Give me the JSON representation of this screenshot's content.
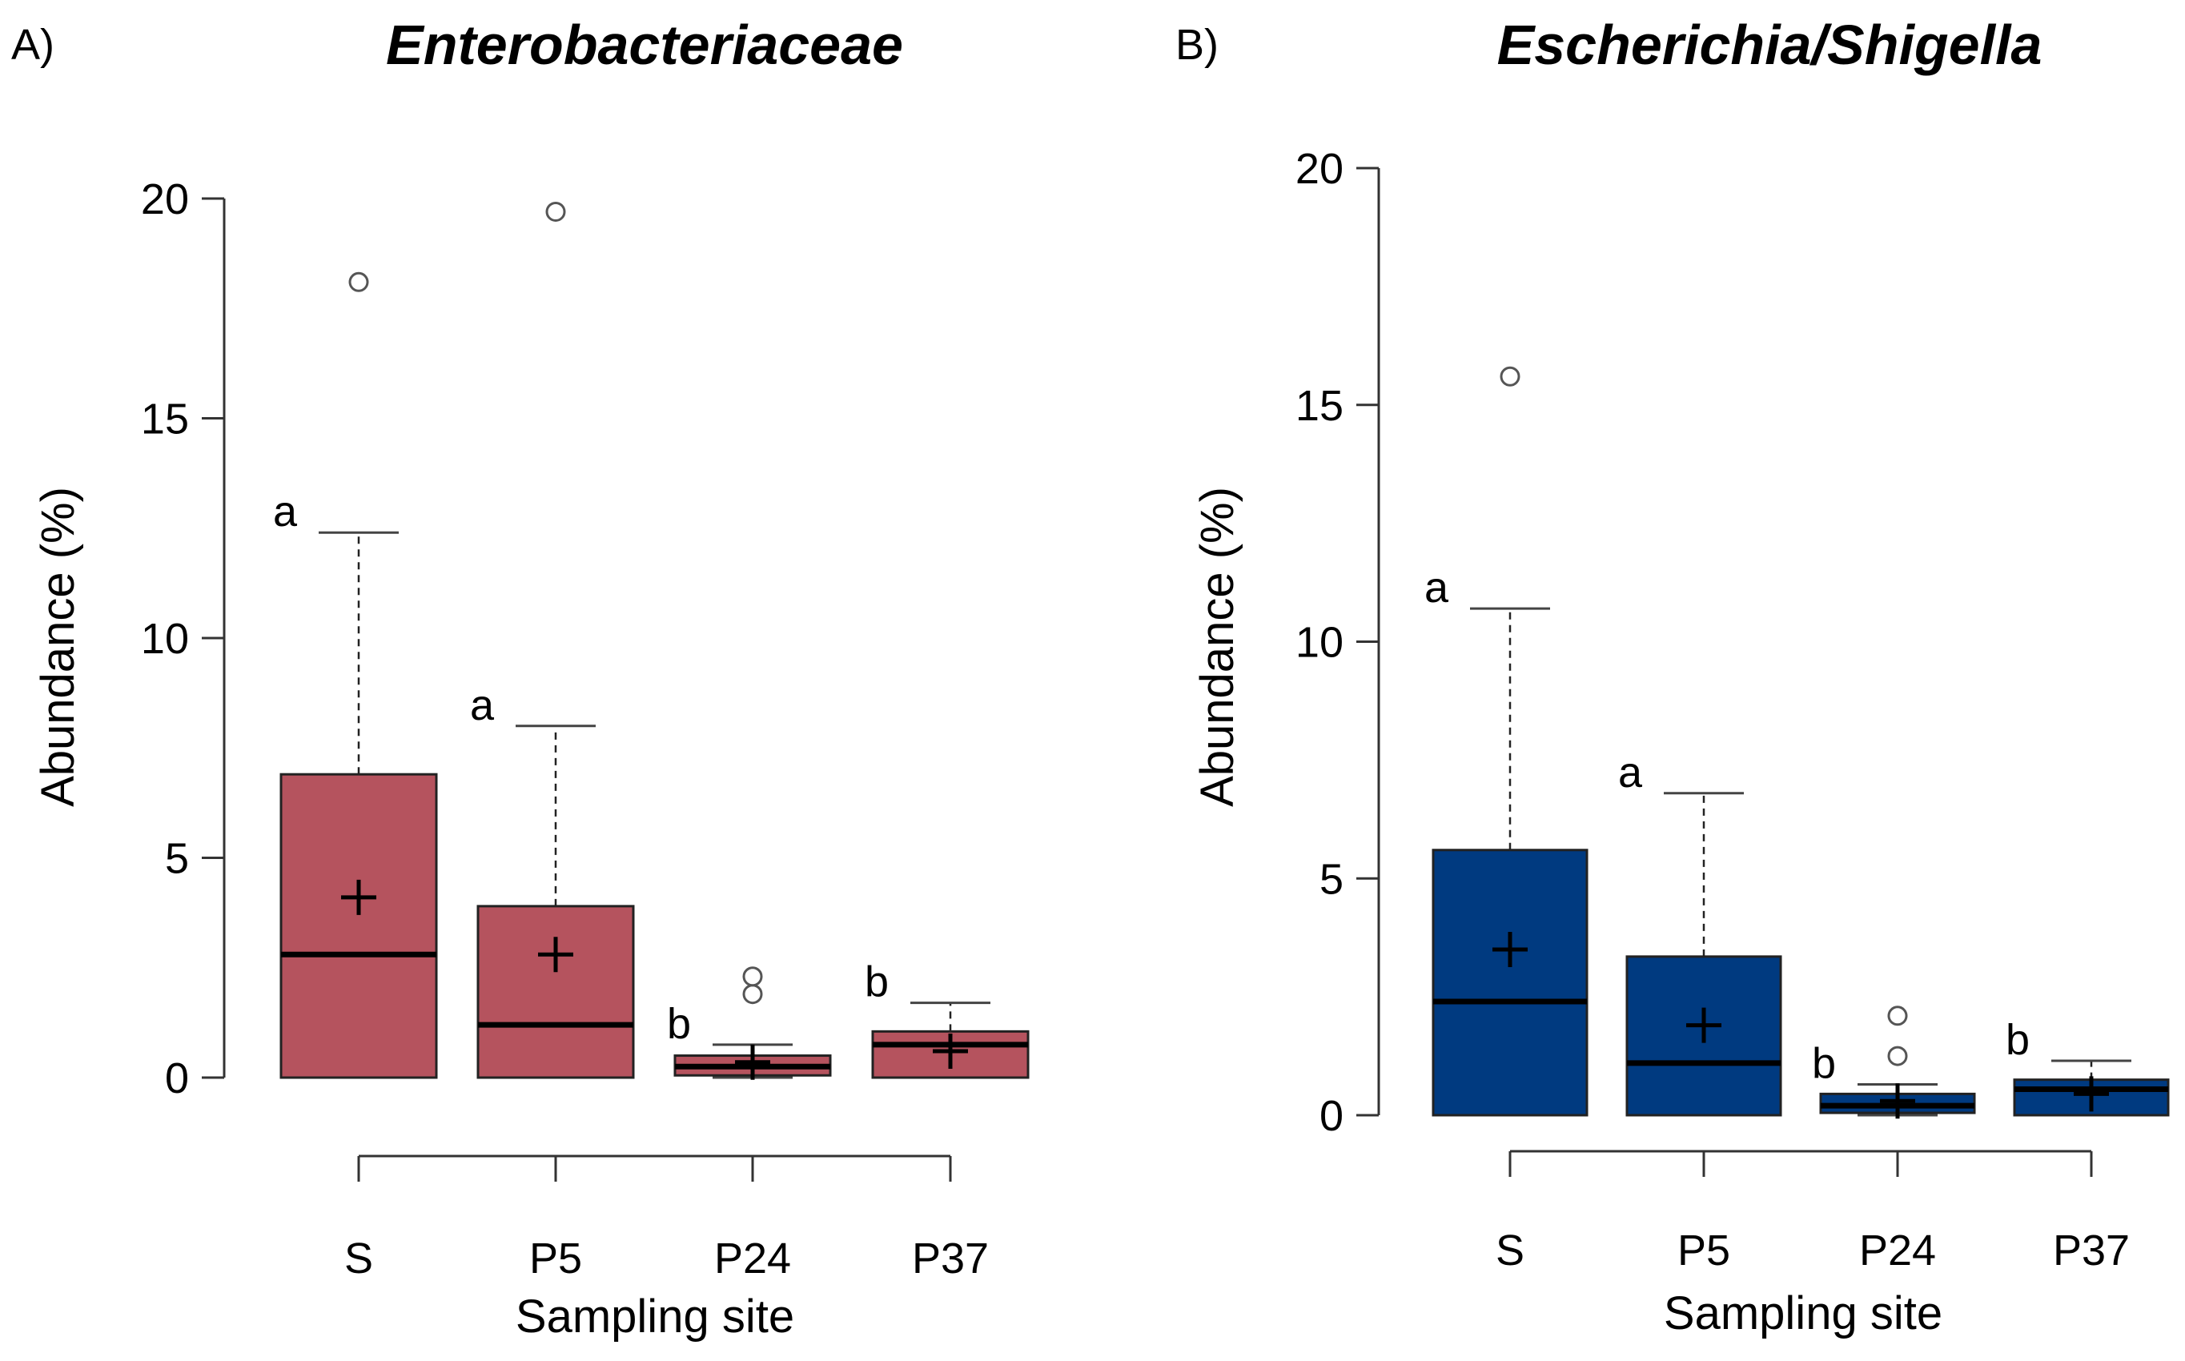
{
  "chart_data": [
    {
      "type": "boxplot",
      "panel_label": "A)",
      "title": "Enterobacteriaceae",
      "xlabel": "Sampling site",
      "ylabel": "Abundance (%)",
      "ylim": [
        0,
        20
      ],
      "yticks": [
        "0",
        "5",
        "10",
        "15",
        "20"
      ],
      "box_color": "#b5535e",
      "categories": [
        "S",
        "P5",
        "P24",
        "P37"
      ],
      "groups": [
        {
          "name": "S",
          "min": 0,
          "q1": 0,
          "median": 2.8,
          "q3": 6.9,
          "max": 12.4,
          "mean": 4.1,
          "outliers": [
            18.1
          ],
          "letter": "a"
        },
        {
          "name": "P5",
          "min": 0,
          "q1": 0,
          "median": 1.2,
          "q3": 3.9,
          "max": 8.0,
          "mean": 2.8,
          "outliers": [
            19.7
          ],
          "letter": "a"
        },
        {
          "name": "P24",
          "min": 0,
          "q1": 0.05,
          "median": 0.25,
          "q3": 0.5,
          "max": 0.75,
          "mean": 0.35,
          "outliers": [
            1.9,
            2.3
          ],
          "letter": "b"
        },
        {
          "name": "P37",
          "min": 0,
          "q1": 0,
          "median": 0.75,
          "q3": 1.05,
          "max": 1.7,
          "mean": 0.6,
          "outliers": [],
          "letter": "b"
        }
      ]
    },
    {
      "type": "boxplot",
      "panel_label": "B)",
      "title": "Escherichia/Shigella",
      "xlabel": "Sampling site",
      "ylabel": "Abundance (%)",
      "ylim": [
        0,
        20
      ],
      "yticks": [
        "0",
        "5",
        "10",
        "15",
        "20"
      ],
      "box_color": "#003a80",
      "categories": [
        "S",
        "P5",
        "P24",
        "P37"
      ],
      "groups": [
        {
          "name": "S",
          "min": 0,
          "q1": 0,
          "median": 2.4,
          "q3": 5.6,
          "max": 10.7,
          "mean": 3.5,
          "outliers": [
            15.6
          ],
          "letter": "a"
        },
        {
          "name": "P5",
          "min": 0,
          "q1": 0,
          "median": 1.1,
          "q3": 3.35,
          "max": 6.8,
          "mean": 1.9,
          "outliers": [],
          "letter": "a"
        },
        {
          "name": "P24",
          "min": 0,
          "q1": 0.05,
          "median": 0.2,
          "q3": 0.45,
          "max": 0.65,
          "mean": 0.3,
          "outliers": [
            1.25,
            2.1
          ],
          "letter": "b"
        },
        {
          "name": "P37",
          "min": 0,
          "q1": 0,
          "median": 0.55,
          "q3": 0.75,
          "max": 1.15,
          "mean": 0.45,
          "outliers": [],
          "letter": "b"
        }
      ]
    }
  ]
}
